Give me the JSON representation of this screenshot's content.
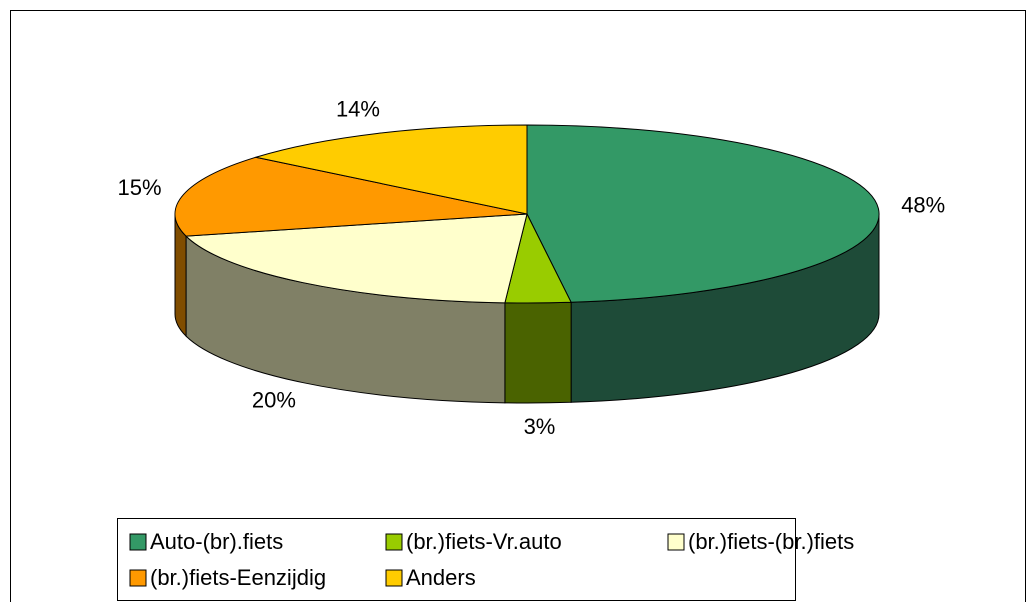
{
  "chart_data": {
    "type": "pie3d",
    "categories": [
      "Auto-(br).fiets",
      "(br.)fiets-Vr.auto",
      "(br.)fiets-(br.)fiets",
      "(br.)fiets-Eenzijdig",
      "Anders"
    ],
    "values": [
      48,
      3,
      20,
      15,
      14
    ],
    "value_labels": [
      "48%",
      "3%",
      "20%",
      "15%",
      "14%"
    ],
    "colors": [
      "#339966",
      "#99cc00",
      "#ffffcc",
      "#ff9900",
      "#ffcc00"
    ],
    "side_colors": [
      "#1e4b38",
      "#4a6300",
      "#808066",
      "#804d00",
      "#806600"
    ],
    "legend": "bottom"
  }
}
